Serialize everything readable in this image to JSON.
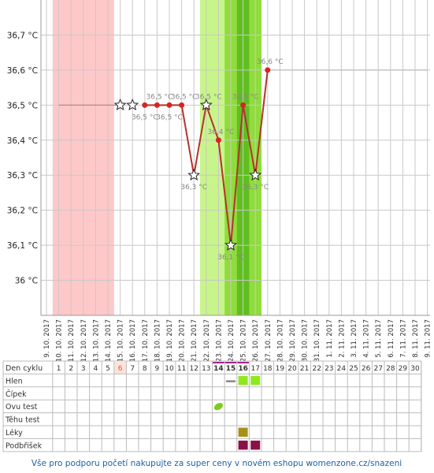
{
  "chart_data": {
    "type": "line",
    "x": [
      "9. 10. 2017",
      "10. 10. 2017",
      "11. 10. 2017",
      "12. 10. 2017",
      "13. 10. 2017",
      "14. 10. 2017",
      "15. 10. 2017",
      "16. 10. 2017",
      "17. 10. 2017",
      "18. 10. 2017",
      "19. 10. 2017",
      "20. 10. 2017",
      "21. 10. 2017",
      "22. 10. 2017",
      "23. 10. 2017",
      "24. 10. 2017",
      "25. 10. 2017",
      "26. 10. 2017",
      "27. 10. 2017",
      "28. 10. 2017",
      "29. 10. 2017",
      "30. 10. 2017",
      "31. 10. 2017",
      "1. 11. 2017",
      "2. 11. 2017",
      "3. 11. 2017",
      "4. 11. 2017",
      "5. 11. 2017",
      "6. 11. 2017",
      "7. 11. 2017",
      "8. 11. 2017",
      "9. 11. 2017"
    ],
    "values": [
      null,
      null,
      null,
      null,
      null,
      null,
      36.5,
      36.5,
      36.5,
      36.5,
      36.5,
      36.5,
      36.3,
      36.5,
      36.4,
      36.1,
      36.5,
      36.3,
      36.6,
      null,
      null,
      null,
      null,
      null,
      null,
      null,
      null,
      null,
      null,
      null,
      null,
      null
    ],
    "markers": [
      null,
      null,
      null,
      null,
      null,
      null,
      "star",
      "star",
      "dot",
      "dot",
      "dot",
      "dot",
      "star",
      "star",
      "dot",
      "star",
      "dot",
      "star",
      "dot",
      null,
      null,
      null,
      null,
      null,
      null,
      null,
      null,
      null,
      null,
      null,
      null,
      null
    ],
    "value_labels": [
      null,
      null,
      null,
      null,
      null,
      null,
      null,
      null,
      "36,5 °C",
      "36,5 °C",
      "36,5 °C",
      "36,5 °C",
      "36,3 °C",
      "36,5 °C",
      "36,4 °C",
      "36,1 °C",
      "36,5 °C",
      "36,3 °C",
      "36,6 °C",
      null,
      null,
      null,
      null,
      null,
      null,
      null,
      null,
      null,
      null,
      null,
      null,
      null
    ],
    "line_start": "17. 10. 2017",
    "color": "#b5322c",
    "reference_lines": [
      {
        "start": "10. 10. 2017",
        "end": "15. 10. 2017",
        "value": 36.5
      },
      {
        "start": "27. 10. 2017",
        "end": "9. 11. 2017",
        "value": 36.6
      }
    ],
    "ylim": [
      35.9,
      36.8
    ],
    "yticks": [
      {
        "value": 36,
        "label": "36 °C"
      },
      {
        "value": 36.1,
        "label": "36,1 °C"
      },
      {
        "value": 36.2,
        "label": "36,2 °C"
      },
      {
        "value": 36.3,
        "label": "36,3 °C"
      },
      {
        "value": 36.4,
        "label": "36,4 °C"
      },
      {
        "value": 36.5,
        "label": "36,5 °C"
      },
      {
        "value": 36.6,
        "label": "36,6 °C"
      },
      {
        "value": 36.7,
        "label": "36,7 °C"
      }
    ],
    "grid": true
  },
  "table": {
    "header": "Den cyklu",
    "days": [
      1,
      2,
      3,
      4,
      5,
      6,
      7,
      8,
      9,
      10,
      11,
      12,
      13,
      14,
      15,
      16,
      17,
      18,
      19,
      20,
      21,
      22,
      23,
      24,
      25,
      26,
      27,
      28,
      29,
      30
    ],
    "rows": [
      "Hlen",
      "Čípek",
      "Ovu test",
      "Těhu test",
      "Léky",
      "Podbřišek"
    ]
  },
  "footer": "Vše pro podporu početí nakupujte za super ceny v novém eshopu womenzone.cz/snazeni"
}
